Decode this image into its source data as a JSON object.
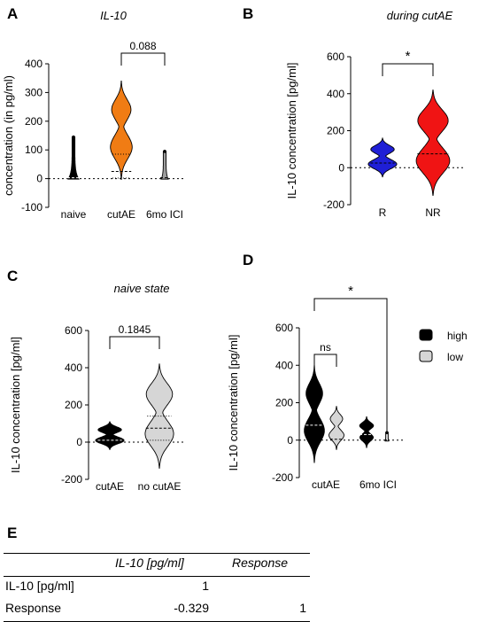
{
  "panel_labels": {
    "a": "A",
    "b": "B",
    "c": "C",
    "d": "D",
    "e": "E"
  },
  "colors": {
    "naive": "#000000",
    "cutAE": "#f07c14",
    "ici": "#9e9e9e",
    "R": "#1f1fd6",
    "NR": "#f01414",
    "high": "#000000",
    "low": "#d6d6d6"
  },
  "chart_data": [
    {
      "id": "A",
      "type": "violin",
      "title": "IL-10",
      "xlabel": "",
      "ylabel": "concentration (in pg/ml)",
      "ylim": [
        -100,
        400
      ],
      "yticks": [
        -100,
        0,
        100,
        200,
        300,
        400
      ],
      "categories": [
        "naive",
        "cutAE",
        "6mo ICI"
      ],
      "series": [
        {
          "category": "naive",
          "min": -2,
          "max": 145,
          "median": 3
        },
        {
          "category": "cutAE",
          "min": -3,
          "max": 340,
          "median": 25,
          "q1": 2,
          "q3": 85
        },
        {
          "category": "6mo ICI",
          "min": -2,
          "max": 95,
          "median": 3
        }
      ],
      "annotations": [
        {
          "between": [
            "cutAE",
            "6mo ICI"
          ],
          "text": "0.088"
        }
      ]
    },
    {
      "id": "B",
      "type": "violin",
      "title": "during cutAE",
      "xlabel": "",
      "ylabel": "IL-10 concentration [pg/ml]",
      "ylim": [
        -200,
        600
      ],
      "yticks": [
        -200,
        0,
        200,
        400,
        600
      ],
      "categories": [
        "R",
        "NR"
      ],
      "series": [
        {
          "category": "R",
          "min": -50,
          "max": 160,
          "median": 25
        },
        {
          "category": "NR",
          "min": -150,
          "max": 420,
          "median": 75
        }
      ],
      "annotations": [
        {
          "between": [
            "R",
            "NR"
          ],
          "text": "*"
        }
      ]
    },
    {
      "id": "C",
      "type": "violin",
      "title": "naive state",
      "xlabel": "",
      "ylabel": "IL-10 concentration [pg/ml]",
      "ylim": [
        -200,
        600
      ],
      "yticks": [
        -200,
        0,
        200,
        400,
        600
      ],
      "categories": [
        "cutAE",
        "no cutAE"
      ],
      "series": [
        {
          "category": "cutAE",
          "min": -40,
          "max": 110,
          "median": 10
        },
        {
          "category": "no cutAE",
          "min": -140,
          "max": 420,
          "median": 75,
          "q1": 10,
          "q3": 140
        }
      ],
      "annotations": [
        {
          "between": [
            "cutAE",
            "no cutAE"
          ],
          "text": "0.1845"
        }
      ]
    },
    {
      "id": "D",
      "type": "violin",
      "title": "",
      "xlabel": "",
      "ylabel": "IL-10 concentration [pg/ml]",
      "ylim": [
        -200,
        600
      ],
      "yticks": [
        -200,
        0,
        200,
        400,
        600
      ],
      "categories": [
        "cutAE",
        "6mo ICI"
      ],
      "legend": {
        "position": "right",
        "entries": [
          "high",
          "low"
        ]
      },
      "series": [
        {
          "name": "high",
          "category": "cutAE",
          "min": -120,
          "max": 400,
          "median": 80
        },
        {
          "name": "low",
          "category": "cutAE",
          "min": -50,
          "max": 180,
          "median": 5
        },
        {
          "name": "high",
          "category": "6mo ICI",
          "min": -40,
          "max": 125,
          "median": 30
        },
        {
          "name": "low",
          "category": "6mo ICI",
          "min": -5,
          "max": 40,
          "median": 0
        }
      ],
      "annotations": [
        {
          "between": [
            "cutAE high",
            "cutAE low"
          ],
          "text": "ns"
        },
        {
          "between": [
            "cutAE high",
            "6mo ICI low"
          ],
          "text": "*"
        }
      ]
    },
    {
      "id": "E",
      "type": "table",
      "columns": [
        "",
        "IL-10 [pg/ml]",
        "Response"
      ],
      "rows": [
        [
          "IL-10 [pg/ml]",
          "1",
          ""
        ],
        [
          "Response",
          "-0.329",
          "1"
        ]
      ]
    }
  ]
}
